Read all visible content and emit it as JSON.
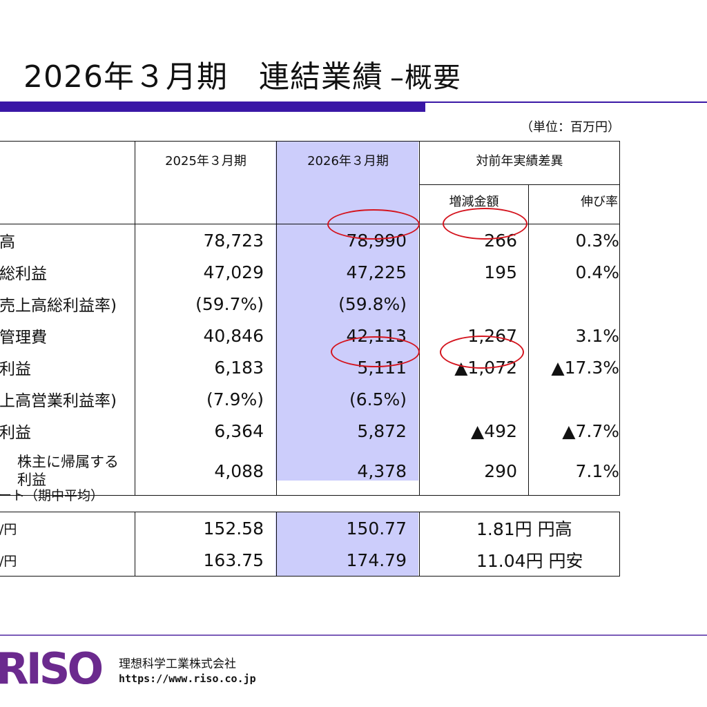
{
  "title": {
    "main": "2026年３月期　連結業績",
    "sub": "–概要"
  },
  "unit": "（単位：百万円）",
  "columns": {
    "prev": "2025年３月期",
    "curr": "2026年３月期",
    "diff": "対前年実績差異",
    "diff_amount": "増減金額",
    "growth": "伸び率"
  },
  "rows": [
    {
      "label": "高",
      "prev": "78,723",
      "curr": "78,990",
      "diff": "266",
      "growth": "0.3%"
    },
    {
      "label": "総利益",
      "prev": "47,029",
      "curr": "47,225",
      "diff": "195",
      "growth": "0.4%"
    },
    {
      "label": "売上高総利益率)",
      "prev": "(59.7%)",
      "curr": "(59.8%)",
      "diff": "",
      "growth": ""
    },
    {
      "label": "管理費",
      "prev": "40,846",
      "curr": "42,113",
      "diff": "1,267",
      "growth": "3.1%"
    },
    {
      "label": "利益",
      "prev": "6,183",
      "curr": "5,111",
      "diff": "▲1,072",
      "growth": "▲17.3%"
    },
    {
      "label": "上高営業利益率)",
      "prev": "(7.9%)",
      "curr": "(6.5%)",
      "diff": "",
      "growth": ""
    },
    {
      "label": "利益",
      "prev": "6,364",
      "curr": "5,872",
      "diff": "▲492",
      "growth": "▲7.7%"
    },
    {
      "label_line1": "株主に帰属する",
      "label_line2": "利益",
      "prev": "4,088",
      "curr": "4,378",
      "diff": "290",
      "growth": "7.1%"
    }
  ],
  "fx_label": "ート（期中平均）",
  "fx_rows": [
    {
      "label": "/円",
      "prev": "152.58",
      "curr": "150.77",
      "diff": "1.81円 円高"
    },
    {
      "label": "/円",
      "prev": "163.75",
      "curr": "174.79",
      "diff": "11.04円 円安"
    }
  ],
  "footer": {
    "logo": "RISO",
    "company": "理想科学工業株式会社",
    "url": "https://www.riso.co.jp"
  },
  "colors": {
    "accent": "#3a17a6",
    "highlight": "#cccdfb",
    "circle": "#d4141e",
    "logo": "#6b2a8e"
  }
}
